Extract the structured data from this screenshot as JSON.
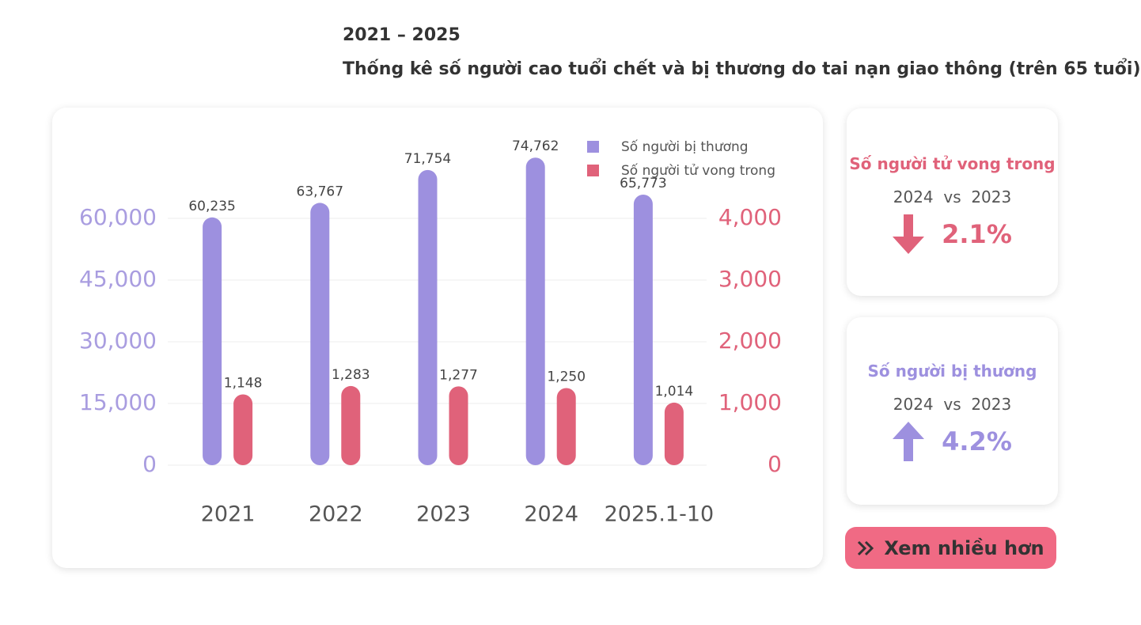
{
  "header": {
    "period": "2021 – 2025",
    "title": "Thống kê số người cao tuổi chết và bị thương do tai nạn giao thông (trên 65 tuổi)"
  },
  "chart_data": {
    "type": "bar",
    "categories": [
      "2021",
      "2022",
      "2023",
      "2024",
      "2025.1-10"
    ],
    "series": [
      {
        "name": "Số người bị thương",
        "color": "#9d90df",
        "values": [
          60235,
          63767,
          71754,
          74762,
          65773
        ],
        "value_labels": [
          "60,235",
          "63,767",
          "71,754",
          "74,762",
          "65,773"
        ]
      },
      {
        "name": "Số người tử vong trong",
        "color": "#e0627a",
        "axis": "y2",
        "values": [
          1148,
          1283,
          1277,
          1250,
          1014
        ],
        "value_labels": [
          "1,148",
          "1,283",
          "1,277",
          "1,250",
          "1,014"
        ]
      }
    ],
    "ylim": [
      0,
      75000
    ],
    "yticks": [
      0,
      {
        "value": 15000,
        "label": "15,000"
      },
      {
        "value": 30000,
        "label": "30,000"
      },
      {
        "value": 45000,
        "label": "45,000"
      },
      {
        "value": 60000,
        "label": "60,000"
      }
    ],
    "y2lim": [
      0,
      5000
    ],
    "y2ticks": [
      0,
      {
        "value": 1000,
        "label": "1,000"
      },
      {
        "value": 2000,
        "label": "2,000"
      },
      {
        "value": 3000,
        "label": "3,000"
      },
      {
        "value": 4000,
        "label": "4,000"
      }
    ],
    "grid": true,
    "legend": "upper right"
  },
  "cards": [
    {
      "title": "Số người tử vong trong",
      "comparison": "2024  vs  2023",
      "change": "2.1%"
    },
    {
      "title": "Số người bị thương",
      "comparison": "2024  vs  2023",
      "change": "4.2%"
    }
  ],
  "button": {
    "label": "Xem nhiều hơn"
  }
}
